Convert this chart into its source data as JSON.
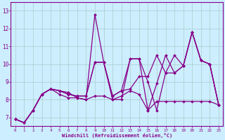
{
  "xlabel": "Windchill (Refroidissement éolien,°C)",
  "bg_color": "#cceeff",
  "line_color": "#880088",
  "grid_color": "#aacccc",
  "xlim": [
    -0.5,
    23.5
  ],
  "ylim": [
    6.5,
    13.5
  ],
  "xticks": [
    0,
    1,
    2,
    3,
    4,
    5,
    6,
    7,
    8,
    9,
    10,
    11,
    12,
    13,
    14,
    15,
    16,
    17,
    18,
    19,
    20,
    21,
    22,
    23
  ],
  "yticks": [
    7,
    8,
    9,
    10,
    11,
    12,
    13
  ],
  "lines": [
    {
      "x": [
        0,
        1,
        2,
        3,
        4,
        5,
        6,
        7,
        8,
        9,
        10,
        11,
        12,
        13,
        14,
        15,
        16,
        17,
        18,
        19,
        20,
        21,
        22,
        23
      ],
      "y": [
        6.9,
        6.7,
        7.4,
        8.3,
        8.6,
        8.5,
        8.4,
        8.1,
        8.0,
        12.8,
        10.1,
        8.0,
        8.0,
        10.3,
        10.3,
        7.4,
        8.9,
        10.5,
        9.5,
        9.9,
        11.8,
        10.2,
        10.0,
        7.7
      ]
    },
    {
      "x": [
        0,
        1,
        2,
        3,
        4,
        5,
        6,
        7,
        8,
        9,
        10,
        11,
        12,
        13,
        14,
        15,
        16,
        17,
        18,
        19,
        20,
        21,
        22,
        23
      ],
      "y": [
        6.9,
        6.7,
        7.4,
        8.3,
        8.6,
        8.5,
        8.3,
        8.2,
        8.2,
        10.1,
        10.1,
        8.2,
        8.5,
        10.3,
        10.3,
        9.0,
        7.4,
        9.5,
        10.5,
        9.9,
        11.8,
        10.2,
        10.0,
        7.7
      ]
    },
    {
      "x": [
        0,
        1,
        2,
        3,
        4,
        5,
        6,
        7,
        8,
        9,
        10,
        11,
        12,
        13,
        14,
        15,
        16,
        17,
        18,
        19,
        20,
        21,
        22,
        23
      ],
      "y": [
        6.9,
        6.7,
        7.4,
        8.3,
        8.6,
        8.5,
        8.3,
        8.2,
        8.2,
        10.1,
        10.1,
        8.2,
        8.5,
        8.6,
        9.3,
        9.3,
        10.5,
        9.5,
        9.5,
        9.9,
        11.8,
        10.2,
        10.0,
        7.7
      ]
    },
    {
      "x": [
        0,
        1,
        2,
        3,
        4,
        5,
        6,
        7,
        8,
        9,
        10,
        11,
        12,
        13,
        14,
        15,
        16,
        17,
        18,
        19,
        20,
        21,
        22,
        23
      ],
      "y": [
        6.9,
        6.7,
        7.4,
        8.3,
        8.6,
        8.3,
        8.1,
        8.1,
        8.0,
        8.2,
        8.2,
        8.0,
        8.2,
        8.5,
        8.3,
        7.4,
        7.9,
        7.9,
        7.9,
        7.9,
        7.9,
        7.9,
        7.9,
        7.7
      ]
    }
  ]
}
